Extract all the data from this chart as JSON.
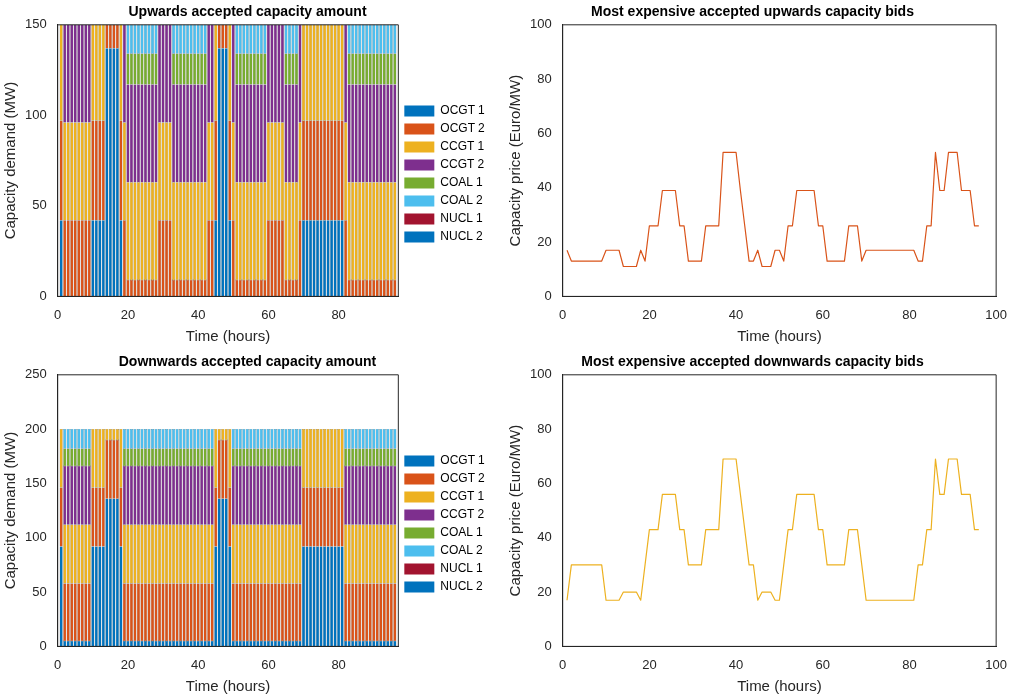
{
  "chart_data": [
    {
      "type": "bar",
      "title": "Upwards accepted capacity amount",
      "xlabel": "Time (hours)",
      "ylabel": "Capacity demand (MW)",
      "stacked": true,
      "legend": "right",
      "xlim": [
        0,
        97
      ],
      "xticks": [
        0,
        20,
        40,
        60,
        80
      ],
      "ylim": [
        0,
        150
      ],
      "yticks": [
        0,
        50,
        100,
        150
      ],
      "x": [
        1,
        2,
        3,
        4,
        5,
        6,
        7,
        8,
        9,
        10,
        11,
        12,
        13,
        14,
        15,
        16,
        17,
        18,
        19,
        20,
        21,
        22,
        23,
        24,
        25,
        26,
        27,
        28,
        29,
        30,
        31,
        32,
        33,
        34,
        35,
        36,
        37,
        38,
        39,
        40,
        41,
        42,
        43,
        44,
        45,
        46,
        47,
        48,
        49,
        50,
        51,
        52,
        53,
        54,
        55,
        56,
        57,
        58,
        59,
        60,
        61,
        62,
        63,
        64,
        65,
        66,
        67,
        68,
        69,
        70,
        71,
        72,
        73,
        74,
        75,
        76,
        77,
        78,
        79,
        80,
        81,
        82,
        83,
        84,
        85,
        86,
        87,
        88,
        89,
        90,
        91,
        92,
        93,
        94,
        95,
        96
      ],
      "series": [
        {
          "name": "OCGT 1",
          "color": "#0072bd",
          "values": [
            42,
            0,
            0,
            0,
            0,
            0,
            0,
            0,
            0,
            42,
            42,
            42,
            42,
            137,
            137,
            137,
            137,
            42,
            0,
            0,
            0,
            0,
            0,
            0,
            0,
            0,
            0,
            0,
            0,
            0,
            0,
            0,
            0,
            0,
            0,
            0,
            0,
            0,
            0,
            0,
            0,
            0,
            0,
            0,
            42,
            137,
            137,
            137,
            42,
            0,
            0,
            0,
            0,
            0,
            0,
            0,
            0,
            0,
            0,
            0,
            0,
            0,
            0,
            0,
            0,
            0,
            0,
            0,
            0,
            42,
            42,
            42,
            42,
            42,
            42,
            42,
            42,
            42,
            42,
            42,
            42,
            0,
            0,
            0,
            0,
            0,
            0,
            0,
            0,
            0,
            0,
            0,
            0,
            0,
            0,
            0
          ]
        },
        {
          "name": "OCGT 2",
          "color": "#d95319",
          "values": [
            55,
            42,
            42,
            42,
            42,
            42,
            42,
            42,
            42,
            55,
            55,
            55,
            55,
            13,
            13,
            13,
            13,
            55,
            42,
            9,
            9,
            9,
            9,
            9,
            9,
            9,
            9,
            9,
            42,
            42,
            42,
            42,
            9,
            9,
            9,
            9,
            9,
            9,
            9,
            9,
            9,
            9,
            42,
            42,
            55,
            13,
            13,
            13,
            55,
            42,
            9,
            9,
            9,
            9,
            9,
            9,
            9,
            9,
            9,
            42,
            42,
            42,
            42,
            42,
            9,
            9,
            9,
            9,
            42,
            55,
            55,
            55,
            55,
            55,
            55,
            55,
            55,
            55,
            55,
            55,
            55,
            42,
            9,
            9,
            9,
            9,
            9,
            9,
            9,
            9,
            9,
            9,
            9,
            9,
            9,
            9
          ]
        },
        {
          "name": "CCGT 1",
          "color": "#edb120",
          "values": [
            53,
            54,
            54,
            54,
            54,
            54,
            54,
            54,
            54,
            53,
            53,
            53,
            53,
            0,
            0,
            0,
            0,
            53,
            54,
            54,
            54,
            54,
            54,
            54,
            54,
            54,
            54,
            54,
            54,
            54,
            54,
            54,
            54,
            54,
            54,
            54,
            54,
            54,
            54,
            54,
            54,
            54,
            54,
            54,
            53,
            0,
            0,
            0,
            53,
            54,
            54,
            54,
            54,
            54,
            54,
            54,
            54,
            54,
            54,
            54,
            54,
            54,
            54,
            54,
            54,
            54,
            54,
            54,
            54,
            53,
            53,
            53,
            53,
            53,
            53,
            53,
            53,
            53,
            53,
            53,
            53,
            54,
            54,
            54,
            54,
            54,
            54,
            54,
            54,
            54,
            54,
            54,
            54,
            54,
            54,
            54
          ]
        },
        {
          "name": "CCGT 2",
          "color": "#7e2f8e",
          "values": [
            0,
            54,
            54,
            54,
            54,
            54,
            54,
            54,
            54,
            0,
            0,
            0,
            0,
            0,
            0,
            0,
            0,
            0,
            54,
            54,
            54,
            54,
            54,
            54,
            54,
            54,
            54,
            54,
            54,
            54,
            54,
            54,
            54,
            54,
            54,
            54,
            54,
            54,
            54,
            54,
            54,
            54,
            54,
            54,
            0,
            0,
            0,
            0,
            0,
            54,
            54,
            54,
            54,
            54,
            54,
            54,
            54,
            54,
            54,
            54,
            54,
            54,
            54,
            54,
            54,
            54,
            54,
            54,
            54,
            0,
            0,
            0,
            0,
            0,
            0,
            0,
            0,
            0,
            0,
            0,
            0,
            54,
            54,
            54,
            54,
            54,
            54,
            54,
            54,
            54,
            54,
            54,
            54,
            54,
            54,
            54
          ]
        },
        {
          "name": "COAL 1",
          "color": "#77ac30",
          "values": [
            0,
            0,
            0,
            0,
            0,
            0,
            0,
            0,
            0,
            0,
            0,
            0,
            0,
            0,
            0,
            0,
            0,
            0,
            0,
            17,
            17,
            17,
            17,
            17,
            17,
            17,
            17,
            17,
            0,
            0,
            0,
            0,
            17,
            17,
            17,
            17,
            17,
            17,
            17,
            17,
            17,
            17,
            0,
            0,
            0,
            0,
            0,
            0,
            0,
            0,
            17,
            17,
            17,
            17,
            17,
            17,
            17,
            17,
            17,
            0,
            0,
            0,
            0,
            0,
            17,
            17,
            17,
            17,
            0,
            0,
            0,
            0,
            0,
            0,
            0,
            0,
            0,
            0,
            0,
            0,
            0,
            0,
            17,
            17,
            17,
            17,
            17,
            17,
            17,
            17,
            17,
            17,
            17,
            17,
            17,
            17
          ]
        },
        {
          "name": "COAL 2",
          "color": "#4dbeee",
          "values": [
            0,
            0,
            0,
            0,
            0,
            0,
            0,
            0,
            0,
            0,
            0,
            0,
            0,
            0,
            0,
            0,
            0,
            0,
            0,
            16,
            16,
            16,
            16,
            16,
            16,
            16,
            16,
            16,
            0,
            0,
            0,
            0,
            16,
            16,
            16,
            16,
            16,
            16,
            16,
            16,
            16,
            16,
            0,
            0,
            0,
            0,
            0,
            0,
            0,
            0,
            16,
            16,
            16,
            16,
            16,
            16,
            16,
            16,
            16,
            0,
            0,
            0,
            0,
            0,
            16,
            16,
            16,
            16,
            0,
            0,
            0,
            0,
            0,
            0,
            0,
            0,
            0,
            0,
            0,
            0,
            0,
            0,
            16,
            16,
            16,
            16,
            16,
            16,
            16,
            16,
            16,
            16,
            16,
            16,
            16,
            16
          ]
        },
        {
          "name": "NUCL 1",
          "color": "#a2142f",
          "values": [
            0,
            0,
            0,
            0,
            0,
            0,
            0,
            0,
            0,
            0,
            0,
            0,
            0,
            0,
            0,
            0,
            0,
            0,
            0,
            0,
            0,
            0,
            0,
            0,
            0,
            0,
            0,
            0,
            0,
            0,
            0,
            0,
            0,
            0,
            0,
            0,
            0,
            0,
            0,
            0,
            0,
            0,
            0,
            0,
            0,
            0,
            0,
            0,
            0,
            0,
            0,
            0,
            0,
            0,
            0,
            0,
            0,
            0,
            0,
            0,
            0,
            0,
            0,
            0,
            0,
            0,
            0,
            0,
            0,
            0,
            0,
            0,
            0,
            0,
            0,
            0,
            0,
            0,
            0,
            0,
            0,
            0,
            0,
            0,
            0,
            0,
            0,
            0,
            0,
            0,
            0,
            0,
            0,
            0,
            0,
            0
          ]
        },
        {
          "name": "NUCL 2",
          "color": "#0072bd",
          "values": [
            0,
            0,
            0,
            0,
            0,
            0,
            0,
            0,
            0,
            0,
            0,
            0,
            0,
            0,
            0,
            0,
            0,
            0,
            0,
            0,
            0,
            0,
            0,
            0,
            0,
            0,
            0,
            0,
            0,
            0,
            0,
            0,
            0,
            0,
            0,
            0,
            0,
            0,
            0,
            0,
            0,
            0,
            0,
            0,
            0,
            0,
            0,
            0,
            0,
            0,
            0,
            0,
            0,
            0,
            0,
            0,
            0,
            0,
            0,
            0,
            0,
            0,
            0,
            0,
            0,
            0,
            0,
            0,
            0,
            0,
            0,
            0,
            0,
            0,
            0,
            0,
            0,
            0,
            0,
            0,
            0,
            0,
            0,
            0,
            0,
            0,
            0,
            0,
            0,
            0,
            0,
            0,
            0,
            0,
            0,
            0
          ]
        }
      ]
    },
    {
      "type": "line",
      "title": "Most expensive accepted upwards capacity bids",
      "xlabel": "Time (hours)",
      "ylabel": "Capacity price (Euro/MW)",
      "xlim": [
        0,
        100
      ],
      "xticks": [
        0,
        20,
        40,
        60,
        80,
        100
      ],
      "ylim": [
        0,
        100
      ],
      "yticks": [
        0,
        20,
        40,
        60,
        80,
        100
      ],
      "x": [
        1,
        2,
        3,
        4,
        5,
        6,
        7,
        8,
        9,
        10,
        11,
        12,
        13,
        14,
        15,
        16,
        17,
        18,
        19,
        20,
        21,
        22,
        23,
        24,
        25,
        26,
        27,
        28,
        29,
        30,
        31,
        32,
        33,
        34,
        35,
        36,
        37,
        38,
        39,
        40,
        41,
        42,
        43,
        44,
        45,
        46,
        47,
        48,
        49,
        50,
        51,
        52,
        53,
        54,
        55,
        56,
        57,
        58,
        59,
        60,
        61,
        62,
        63,
        64,
        65,
        66,
        67,
        68,
        69,
        70,
        71,
        72,
        73,
        74,
        75,
        76,
        77,
        78,
        79,
        80,
        81,
        82,
        83,
        84,
        85,
        86,
        87,
        88,
        89,
        90,
        91,
        92,
        93,
        94,
        95,
        96
      ],
      "series": [
        {
          "color": "#d95319",
          "values": [
            17,
            13,
            13,
            13,
            13,
            13,
            13,
            13,
            13,
            17,
            17,
            17,
            17,
            11,
            11,
            11,
            11,
            17,
            13,
            26,
            26,
            26,
            39,
            39,
            39,
            39,
            26,
            26,
            13,
            13,
            13,
            13,
            26,
            26,
            26,
            26,
            53,
            53,
            53,
            53,
            39,
            26,
            13,
            13,
            17,
            11,
            11,
            11,
            17,
            17,
            13,
            26,
            26,
            39,
            39,
            39,
            39,
            39,
            26,
            26,
            13,
            13,
            13,
            13,
            13,
            26,
            26,
            26,
            13,
            17,
            17,
            17,
            17,
            17,
            17,
            17,
            17,
            17,
            17,
            17,
            17,
            13,
            13,
            26,
            26,
            53,
            39,
            39,
            53,
            53,
            53,
            39,
            39,
            39,
            26,
            26
          ]
        }
      ]
    },
    {
      "type": "bar",
      "title": "Downwards accepted capacity amount",
      "xlabel": "Time (hours)",
      "ylabel": "Capacity demand (MW)",
      "stacked": true,
      "legend": "right",
      "xlim": [
        0,
        97
      ],
      "xticks": [
        0,
        20,
        40,
        60,
        80
      ],
      "ylim": [
        0,
        250
      ],
      "yticks": [
        0,
        50,
        100,
        150,
        200,
        250
      ],
      "x": [
        1,
        2,
        3,
        4,
        5,
        6,
        7,
        8,
        9,
        10,
        11,
        12,
        13,
        14,
        15,
        16,
        17,
        18,
        19,
        20,
        21,
        22,
        23,
        24,
        25,
        26,
        27,
        28,
        29,
        30,
        31,
        32,
        33,
        34,
        35,
        36,
        37,
        38,
        39,
        40,
        41,
        42,
        43,
        44,
        45,
        46,
        47,
        48,
        49,
        50,
        51,
        52,
        53,
        54,
        55,
        56,
        57,
        58,
        59,
        60,
        61,
        62,
        63,
        64,
        65,
        66,
        67,
        68,
        69,
        70,
        71,
        72,
        73,
        74,
        75,
        76,
        77,
        78,
        79,
        80,
        81,
        82,
        83,
        84,
        85,
        86,
        87,
        88,
        89,
        90,
        91,
        92,
        93,
        94,
        95,
        96
      ],
      "series": [
        {
          "name": "OCGT 1",
          "color": "#0072bd",
          "values": [
            92,
            5,
            5,
            5,
            5,
            5,
            5,
            5,
            5,
            92,
            92,
            92,
            92,
            136,
            136,
            136,
            136,
            92,
            5,
            5,
            5,
            5,
            5,
            5,
            5,
            5,
            5,
            5,
            5,
            5,
            5,
            5,
            5,
            5,
            5,
            5,
            5,
            5,
            5,
            5,
            5,
            5,
            5,
            5,
            92,
            136,
            136,
            136,
            92,
            5,
            5,
            5,
            5,
            5,
            5,
            5,
            5,
            5,
            5,
            5,
            5,
            5,
            5,
            5,
            5,
            5,
            5,
            5,
            5,
            92,
            92,
            92,
            92,
            92,
            92,
            92,
            92,
            92,
            92,
            92,
            92,
            5,
            5,
            5,
            5,
            5,
            5,
            5,
            5,
            5,
            5,
            5,
            5,
            5,
            5,
            5
          ]
        },
        {
          "name": "OCGT 2",
          "color": "#d95319",
          "values": [
            54,
            53,
            53,
            53,
            53,
            53,
            53,
            53,
            53,
            54,
            54,
            54,
            54,
            54,
            54,
            54,
            54,
            54,
            53,
            53,
            53,
            53,
            53,
            53,
            53,
            53,
            53,
            53,
            53,
            53,
            53,
            53,
            53,
            53,
            53,
            53,
            53,
            53,
            53,
            53,
            53,
            53,
            53,
            53,
            54,
            54,
            54,
            54,
            54,
            53,
            53,
            53,
            53,
            53,
            53,
            53,
            53,
            53,
            53,
            53,
            53,
            53,
            53,
            53,
            53,
            53,
            53,
            53,
            53,
            54,
            54,
            54,
            54,
            54,
            54,
            54,
            54,
            54,
            54,
            54,
            54,
            53,
            53,
            53,
            53,
            53,
            53,
            53,
            53,
            53,
            53,
            53,
            53,
            53,
            53,
            53
          ]
        },
        {
          "name": "CCGT 1",
          "color": "#edb120",
          "values": [
            54,
            54,
            54,
            54,
            54,
            54,
            54,
            54,
            54,
            54,
            54,
            54,
            54,
            10,
            10,
            10,
            10,
            54,
            54,
            54,
            54,
            54,
            54,
            54,
            54,
            54,
            54,
            54,
            54,
            54,
            54,
            54,
            54,
            54,
            54,
            54,
            54,
            54,
            54,
            54,
            54,
            54,
            54,
            54,
            54,
            10,
            10,
            10,
            54,
            54,
            54,
            54,
            54,
            54,
            54,
            54,
            54,
            54,
            54,
            54,
            54,
            54,
            54,
            54,
            54,
            54,
            54,
            54,
            54,
            54,
            54,
            54,
            54,
            54,
            54,
            54,
            54,
            54,
            54,
            54,
            54,
            54,
            54,
            54,
            54,
            54,
            54,
            54,
            54,
            54,
            54,
            54,
            54,
            54,
            54,
            54
          ]
        },
        {
          "name": "CCGT 2",
          "color": "#7e2f8e",
          "values": [
            0,
            54,
            54,
            54,
            54,
            54,
            54,
            54,
            54,
            0,
            0,
            0,
            0,
            0,
            0,
            0,
            0,
            0,
            54,
            54,
            54,
            54,
            54,
            54,
            54,
            54,
            54,
            54,
            54,
            54,
            54,
            54,
            54,
            54,
            54,
            54,
            54,
            54,
            54,
            54,
            54,
            54,
            54,
            54,
            0,
            0,
            0,
            0,
            0,
            54,
            54,
            54,
            54,
            54,
            54,
            54,
            54,
            54,
            54,
            54,
            54,
            54,
            54,
            54,
            54,
            54,
            54,
            54,
            54,
            0,
            0,
            0,
            0,
            0,
            0,
            0,
            0,
            0,
            0,
            0,
            0,
            54,
            54,
            54,
            54,
            54,
            54,
            54,
            54,
            54,
            54,
            54,
            54,
            54,
            54,
            54
          ]
        },
        {
          "name": "COAL 1",
          "color": "#77ac30",
          "values": [
            0,
            16,
            16,
            16,
            16,
            16,
            16,
            16,
            16,
            0,
            0,
            0,
            0,
            0,
            0,
            0,
            0,
            0,
            16,
            16,
            16,
            16,
            16,
            16,
            16,
            16,
            16,
            16,
            16,
            16,
            16,
            16,
            16,
            16,
            16,
            16,
            16,
            16,
            16,
            16,
            16,
            16,
            16,
            16,
            0,
            0,
            0,
            0,
            0,
            16,
            16,
            16,
            16,
            16,
            16,
            16,
            16,
            16,
            16,
            16,
            16,
            16,
            16,
            16,
            16,
            16,
            16,
            16,
            16,
            0,
            0,
            0,
            0,
            0,
            0,
            0,
            0,
            0,
            0,
            0,
            0,
            16,
            16,
            16,
            16,
            16,
            16,
            16,
            16,
            16,
            16,
            16,
            16,
            16,
            16,
            16
          ]
        },
        {
          "name": "COAL 2",
          "color": "#4dbeee",
          "values": [
            0,
            18,
            18,
            18,
            18,
            18,
            18,
            18,
            18,
            0,
            0,
            0,
            0,
            0,
            0,
            0,
            0,
            0,
            18,
            18,
            18,
            18,
            18,
            18,
            18,
            18,
            18,
            18,
            18,
            18,
            18,
            18,
            18,
            18,
            18,
            18,
            18,
            18,
            18,
            18,
            18,
            18,
            18,
            18,
            0,
            0,
            0,
            0,
            0,
            18,
            18,
            18,
            18,
            18,
            18,
            18,
            18,
            18,
            18,
            18,
            18,
            18,
            18,
            18,
            18,
            18,
            18,
            18,
            18,
            0,
            0,
            0,
            0,
            0,
            0,
            0,
            0,
            0,
            0,
            0,
            0,
            18,
            18,
            18,
            18,
            18,
            18,
            18,
            18,
            18,
            18,
            18,
            18,
            18,
            18,
            18
          ]
        },
        {
          "name": "NUCL 1",
          "color": "#a2142f",
          "values": [
            0,
            0,
            0,
            0,
            0,
            0,
            0,
            0,
            0,
            0,
            0,
            0,
            0,
            0,
            0,
            0,
            0,
            0,
            0,
            0,
            0,
            0,
            0,
            0,
            0,
            0,
            0,
            0,
            0,
            0,
            0,
            0,
            0,
            0,
            0,
            0,
            0,
            0,
            0,
            0,
            0,
            0,
            0,
            0,
            0,
            0,
            0,
            0,
            0,
            0,
            0,
            0,
            0,
            0,
            0,
            0,
            0,
            0,
            0,
            0,
            0,
            0,
            0,
            0,
            0,
            0,
            0,
            0,
            0,
            0,
            0,
            0,
            0,
            0,
            0,
            0,
            0,
            0,
            0,
            0,
            0,
            0,
            0,
            0,
            0,
            0,
            0,
            0,
            0,
            0,
            0,
            0,
            0,
            0,
            0,
            0
          ]
        },
        {
          "name": "NUCL 2",
          "color": "#0072bd",
          "values": [
            0,
            0,
            0,
            0,
            0,
            0,
            0,
            0,
            0,
            0,
            0,
            0,
            0,
            0,
            0,
            0,
            0,
            0,
            0,
            0,
            0,
            0,
            0,
            0,
            0,
            0,
            0,
            0,
            0,
            0,
            0,
            0,
            0,
            0,
            0,
            0,
            0,
            0,
            0,
            0,
            0,
            0,
            0,
            0,
            0,
            0,
            0,
            0,
            0,
            0,
            0,
            0,
            0,
            0,
            0,
            0,
            0,
            0,
            0,
            0,
            0,
            0,
            0,
            0,
            0,
            0,
            0,
            0,
            0,
            0,
            0,
            0,
            0,
            0,
            0,
            0,
            0,
            0,
            0,
            0,
            0,
            0,
            0,
            0,
            0,
            0,
            0,
            0,
            0,
            0,
            0,
            0,
            0,
            0,
            0,
            0
          ]
        }
      ]
    },
    {
      "type": "line",
      "title": "Most expensive accepted downwards capacity bids",
      "xlabel": "Time (hours)",
      "ylabel": "Capacity price (Euro/MW)",
      "xlim": [
        0,
        100
      ],
      "xticks": [
        0,
        20,
        40,
        60,
        80,
        100
      ],
      "ylim": [
        0,
        100
      ],
      "yticks": [
        0,
        20,
        40,
        60,
        80,
        100
      ],
      "x": [
        1,
        2,
        3,
        4,
        5,
        6,
        7,
        8,
        9,
        10,
        11,
        12,
        13,
        14,
        15,
        16,
        17,
        18,
        19,
        20,
        21,
        22,
        23,
        24,
        25,
        26,
        27,
        28,
        29,
        30,
        31,
        32,
        33,
        34,
        35,
        36,
        37,
        38,
        39,
        40,
        41,
        42,
        43,
        44,
        45,
        46,
        47,
        48,
        49,
        50,
        51,
        52,
        53,
        54,
        55,
        56,
        57,
        58,
        59,
        60,
        61,
        62,
        63,
        64,
        65,
        66,
        67,
        68,
        69,
        70,
        71,
        72,
        73,
        74,
        75,
        76,
        77,
        78,
        79,
        80,
        81,
        82,
        83,
        84,
        85,
        86,
        87,
        88,
        89,
        90,
        91,
        92,
        93,
        94,
        95,
        96
      ],
      "series": [
        {
          "color": "#edb120",
          "values": [
            17,
            30,
            30,
            30,
            30,
            30,
            30,
            30,
            30,
            17,
            17,
            17,
            17,
            20,
            20,
            20,
            20,
            17,
            30,
            43,
            43,
            43,
            56,
            56,
            56,
            56,
            43,
            43,
            30,
            30,
            30,
            30,
            43,
            43,
            43,
            43,
            69,
            69,
            69,
            69,
            56,
            43,
            30,
            30,
            17,
            20,
            20,
            20,
            17,
            17,
            30,
            43,
            43,
            56,
            56,
            56,
            56,
            56,
            43,
            43,
            30,
            30,
            30,
            30,
            30,
            43,
            43,
            43,
            30,
            17,
            17,
            17,
            17,
            17,
            17,
            17,
            17,
            17,
            17,
            17,
            17,
            30,
            30,
            43,
            43,
            69,
            56,
            56,
            69,
            69,
            69,
            56,
            56,
            56,
            43,
            43
          ]
        }
      ]
    }
  ]
}
